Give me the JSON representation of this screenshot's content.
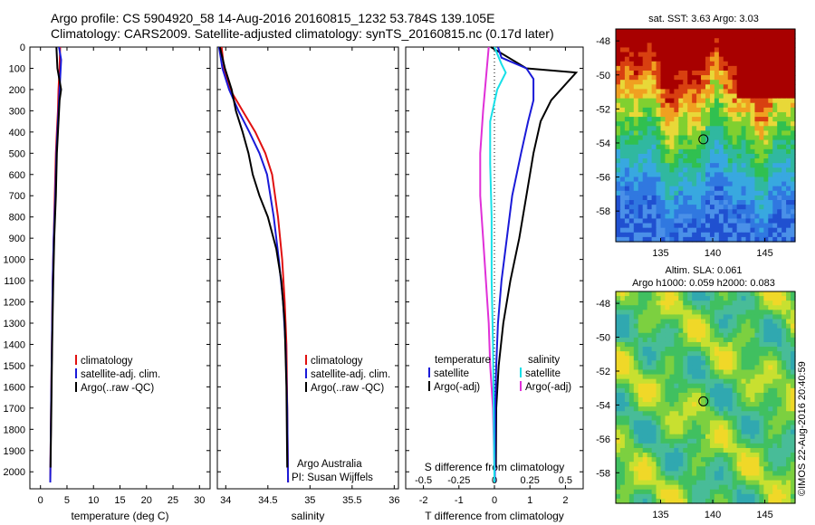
{
  "title": {
    "line1": "Argo profile: CS 5904920_58 14-Aug-2016 20160815_1232 53.784S 139.105E",
    "line2": "Climatology: CARS2009. Satellite-adjusted climatology: synTS_20160815.nc (0.17d later)"
  },
  "colors": {
    "climatology": "#e01010",
    "satellite": "#1a1ad8",
    "argo": "#000000",
    "satellite_s": "#18e0e8",
    "argo_s": "#e030d8"
  },
  "depth_ticks": [
    "0",
    "100",
    "200",
    "300",
    "400",
    "500",
    "600",
    "700",
    "800",
    "900",
    "1000",
    "1100",
    "1200",
    "1300",
    "1400",
    "1500",
    "1600",
    "1700",
    "1800",
    "1900",
    "2000"
  ],
  "panels": {
    "temperature": {
      "xlabel": "temperature (deg C)",
      "xticks": [
        "0",
        "5",
        "10",
        "15",
        "20",
        "25",
        "30"
      ],
      "legend": [
        "climatology",
        "satellite-adj. clim.",
        "Argo(..raw -QC)"
      ]
    },
    "salinity": {
      "xlabel": "salinity",
      "xticks": [
        "34",
        "34.5",
        "35",
        "35.5",
        "36"
      ],
      "legend": [
        "climatology",
        "satellite-adj. clim.",
        "Argo(..raw -QC)"
      ],
      "note1": "Argo Australia",
      "note2": "PI: Susan Wijffels"
    },
    "difference": {
      "xlabel": "T difference from climatology",
      "top_label": "S difference from climatology",
      "xticks": [
        "-2",
        "-1",
        "0",
        "1",
        "2"
      ],
      "s_ticks": [
        "-0.5",
        "-0.25",
        "0",
        "0.25",
        "0.5"
      ],
      "legend_t_head": "temperature",
      "legend_s_head": "salinity",
      "legend_t": [
        "satellite",
        "Argo(-adj)"
      ],
      "legend_s": [
        "satellite",
        "Argo(-adj)"
      ]
    }
  },
  "maps": {
    "sst_title": "sat. SST: 3.63 Argo: 3.03",
    "sla_title1": "Altim. SLA: 0.061",
    "sla_title2": "Argo h1000: 0.059 h2000: 0.083",
    "lat_ticks": [
      "-48",
      "-50",
      "-52",
      "-54",
      "-56",
      "-58"
    ],
    "lon_ticks": [
      "135",
      "140",
      "145"
    ],
    "credit": "©IMOS 22-Aug-2016 20:40:59",
    "float_position": {
      "lon": 139.105,
      "lat": -53.784
    }
  },
  "chart_data": [
    {
      "type": "line",
      "title": "",
      "xlabel": "temperature (deg C)",
      "ylabel": "",
      "xlim": [
        -2,
        32
      ],
      "ylim": [
        2080,
        0
      ],
      "series": [
        {
          "name": "climatology",
          "x": [
            3.7,
            3.6,
            3.4,
            3.3,
            3.1,
            2.9,
            2.7,
            2.5,
            2.3,
            2.15,
            2.0,
            1.85
          ],
          "y": [
            0,
            100,
            200,
            300,
            400,
            500,
            700,
            900,
            1100,
            1400,
            1700,
            2050
          ]
        },
        {
          "name": "satellite-adj. clim.",
          "x": [
            3.5,
            3.9,
            3.7,
            3.4,
            3.2,
            3.0,
            2.8,
            2.5,
            2.3,
            2.15,
            2.0,
            1.85
          ],
          "y": [
            0,
            60,
            150,
            300,
            400,
            500,
            700,
            900,
            1100,
            1400,
            1700,
            2050
          ]
        },
        {
          "name": "Argo(..raw -QC)",
          "x": [
            3.0,
            3.2,
            3.9,
            3.6,
            3.4,
            3.1,
            2.9,
            2.6,
            2.4,
            2.2,
            2.05,
            1.9
          ],
          "y": [
            0,
            100,
            200,
            250,
            350,
            500,
            700,
            900,
            1100,
            1400,
            1700,
            1980
          ]
        }
      ]
    },
    {
      "type": "line",
      "title": "",
      "xlabel": "salinity",
      "ylabel": "",
      "xlim": [
        33.9,
        36.05
      ],
      "ylim": [
        2080,
        0
      ],
      "series": [
        {
          "name": "climatology",
          "x": [
            33.95,
            33.98,
            34.05,
            34.2,
            34.35,
            34.47,
            34.55,
            34.62,
            34.67,
            34.7,
            34.72,
            34.73,
            34.74
          ],
          "y": [
            0,
            100,
            200,
            300,
            400,
            500,
            600,
            800,
            1000,
            1200,
            1400,
            1700,
            2050
          ]
        },
        {
          "name": "satellite-adj. clim.",
          "x": [
            33.92,
            33.96,
            34.04,
            34.15,
            34.28,
            34.4,
            34.49,
            34.57,
            34.63,
            34.68,
            34.71,
            34.73,
            34.74
          ],
          "y": [
            0,
            100,
            200,
            300,
            400,
            500,
            600,
            800,
            1000,
            1200,
            1400,
            1700,
            2050
          ]
        },
        {
          "name": "Argo(..raw -QC)",
          "x": [
            33.93,
            33.99,
            34.07,
            34.12,
            34.2,
            34.27,
            34.32,
            34.4,
            34.5,
            34.6,
            34.66,
            34.7,
            34.72,
            34.73
          ],
          "y": [
            0,
            100,
            200,
            300,
            400,
            500,
            600,
            700,
            800,
            950,
            1100,
            1300,
            1600,
            1980
          ]
        }
      ]
    },
    {
      "type": "line",
      "title": "",
      "xlabel": "T difference from climatology",
      "ylabel": "",
      "xlim": [
        -2.5,
        2.5
      ],
      "ylim": [
        2080,
        0
      ],
      "series": [
        {
          "name": "satellite",
          "x": [
            0.1,
            0.2,
            0.9,
            1.1,
            1.1,
            0.95,
            0.75,
            0.5,
            0.35,
            0.2,
            0.1,
            0.05,
            0.02,
            0.01
          ],
          "y": [
            0,
            50,
            100,
            150,
            250,
            350,
            500,
            700,
            900,
            1100,
            1300,
            1500,
            1700,
            2050
          ]
        },
        {
          "name": "Argo(-adj)",
          "x": [
            -0.1,
            0.4,
            0.9,
            2.3,
            1.6,
            1.3,
            1.1,
            0.9,
            0.7,
            0.45,
            0.25,
            0.12,
            0.05,
            0.04
          ],
          "y": [
            0,
            50,
            100,
            120,
            250,
            350,
            500,
            700,
            900,
            1100,
            1300,
            1500,
            1700,
            1980
          ]
        }
      ]
    },
    {
      "type": "line",
      "title": "",
      "xlabel": "S difference from climatology",
      "ylabel": "",
      "xlim": [
        -0.625,
        0.625
      ],
      "ylim": [
        2080,
        0
      ],
      "series": [
        {
          "name": "satellite",
          "x": [
            0,
            0.05,
            0.08,
            0.02,
            -0.03,
            -0.03,
            -0.02,
            -0.02,
            -0.01,
            -0.005,
            0
          ],
          "y": [
            0,
            80,
            120,
            200,
            350,
            550,
            800,
            1100,
            1400,
            1700,
            2050
          ]
        },
        {
          "name": "Argo(-adj)",
          "x": [
            -0.04,
            -0.06,
            -0.08,
            -0.1,
            -0.1,
            -0.08,
            -0.06,
            -0.04,
            -0.03,
            -0.01,
            0
          ],
          "y": [
            0,
            150,
            300,
            500,
            700,
            900,
            1100,
            1300,
            1500,
            1700,
            1980
          ]
        }
      ]
    }
  ]
}
